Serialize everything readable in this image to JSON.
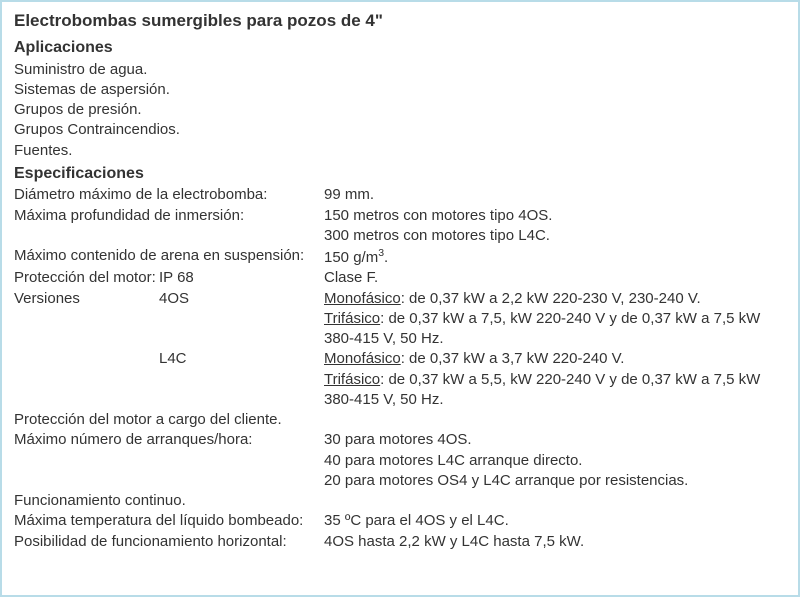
{
  "title": "Electrobombas sumergibles para pozos de 4\"",
  "aplicaciones_h": "Aplicaciones",
  "aplicaciones": [
    "Suministro de agua.",
    "Sistemas de aspersión.",
    "Grupos de presión.",
    "Grupos Contraincendios.",
    "Fuentes."
  ],
  "espec_h": "Especificaciones",
  "spec": {
    "diam_l": "Diámetro máximo de la electrobomba:",
    "diam_v": "99 mm.",
    "prof_l": "Máxima profundidad de inmersión:",
    "prof_v1": "150 metros con motores tipo 4OS.",
    "prof_v2": "300 metros con motores tipo L4C.",
    "arena_l": "Máximo contenido de arena en suspensión:",
    "arena_v": "150 g/m³.",
    "prot_l": "Protección del motor:",
    "prot_ip": "IP 68",
    "prot_clase": "Clase F.",
    "ver_l": "Versiones",
    "ver_4os": "4OS",
    "ver_4os_mono_u": "Monofásico",
    "ver_4os_mono_t": ": de 0,37 kW a 2,2 kW 220-230 V, 230-240 V.",
    "ver_4os_tri_u": "Trifásico",
    "ver_4os_tri_t": ": de 0,37 kW a 7,5, kW 220-240 V  y de 0,37 kW a 7,5  kW 380-415 V, 50 Hz.",
    "ver_l4c": "L4C",
    "ver_l4c_mono_u": "Monofásico",
    "ver_l4c_mono_t": ": de 0,37 kW a 3,7 kW 220-240 V.",
    "ver_l4c_tri_u": "Trifásico",
    "ver_l4c_tri_t": ": de 0,37 kW a 5,5, kW 220-240 V  y de 0,37 kW a 7,5 kW  380-415 V, 50 Hz.",
    "prot_cli": "Protección del motor a cargo del cliente.",
    "arr_l": "Máximo número de arranques/hora:",
    "arr_v1": "30 para motores 4OS.",
    "arr_v2": "40 para motores L4C arranque directo.",
    "arr_v3": "20 para motores OS4 y L4C arranque por resistencias.",
    "func_cont": "Funcionamiento continuo.",
    "temp_l": "Máxima temperatura del líquido bombeado:",
    "temp_v": "35 ºC para el 4OS y el L4C.",
    "horiz_l": "Posibilidad de funcionamiento horizontal:",
    "horiz_v": "4OS hasta 2,2 kW y L4C hasta 7,5 kW."
  }
}
